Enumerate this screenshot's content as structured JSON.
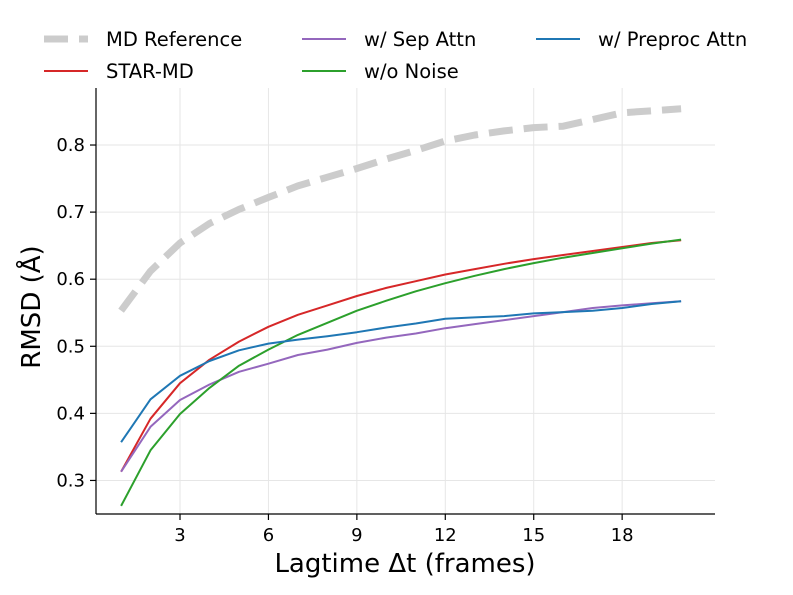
{
  "chart_data": {
    "type": "line",
    "title": "",
    "xlabel": "Lagtime Δt (frames)",
    "ylabel": "RMSD (Å)",
    "xlim": [
      0.15,
      21.15
    ],
    "ylim": [
      0.25,
      0.885
    ],
    "xticks": [
      3,
      6,
      9,
      12,
      15,
      18
    ],
    "yticks": [
      0.3,
      0.4,
      0.5,
      0.6,
      0.7,
      0.8
    ],
    "ytick_labels": [
      "0.3",
      "0.4",
      "0.5",
      "0.6",
      "0.7",
      "0.8"
    ],
    "grid": true,
    "legend_position": "top",
    "x": [
      1,
      2,
      3,
      4,
      5,
      6,
      7,
      8,
      9,
      10,
      11,
      12,
      13,
      14,
      15,
      16,
      17,
      18,
      19,
      20
    ],
    "series": [
      {
        "name": "MD Reference",
        "color": "#cccccc",
        "style": "dashed",
        "values": [
          0.553,
          0.612,
          0.654,
          0.683,
          0.704,
          0.722,
          0.739,
          0.752,
          0.765,
          0.779,
          0.792,
          0.806,
          0.815,
          0.821,
          0.826,
          0.828,
          0.838,
          0.848,
          0.851,
          0.854
        ]
      },
      {
        "name": "STAR-MD",
        "color": "#d62728",
        "style": "solid",
        "values": [
          0.313,
          0.392,
          0.445,
          0.48,
          0.507,
          0.529,
          0.547,
          0.561,
          0.575,
          0.587,
          0.597,
          0.607,
          0.615,
          0.623,
          0.63,
          0.636,
          0.642,
          0.648,
          0.654,
          0.658
        ]
      },
      {
        "name": "w/ Sep Attn",
        "color": "#9467bd",
        "style": "solid",
        "values": [
          0.313,
          0.38,
          0.42,
          0.443,
          0.462,
          0.474,
          0.487,
          0.495,
          0.505,
          0.513,
          0.519,
          0.527,
          0.533,
          0.539,
          0.545,
          0.551,
          0.557,
          0.561,
          0.564,
          0.567
        ]
      },
      {
        "name": "w/o Noise",
        "color": "#2ca02c",
        "style": "solid",
        "values": [
          0.262,
          0.345,
          0.399,
          0.438,
          0.471,
          0.495,
          0.517,
          0.535,
          0.553,
          0.568,
          0.582,
          0.594,
          0.605,
          0.615,
          0.624,
          0.632,
          0.639,
          0.646,
          0.653,
          0.659
        ]
      },
      {
        "name": "w/ Preproc Attn",
        "color": "#1f77b4",
        "style": "solid",
        "values": [
          0.357,
          0.421,
          0.456,
          0.478,
          0.494,
          0.504,
          0.51,
          0.515,
          0.521,
          0.528,
          0.534,
          0.541,
          0.543,
          0.545,
          0.549,
          0.551,
          0.553,
          0.557,
          0.563,
          0.567
        ]
      }
    ]
  }
}
